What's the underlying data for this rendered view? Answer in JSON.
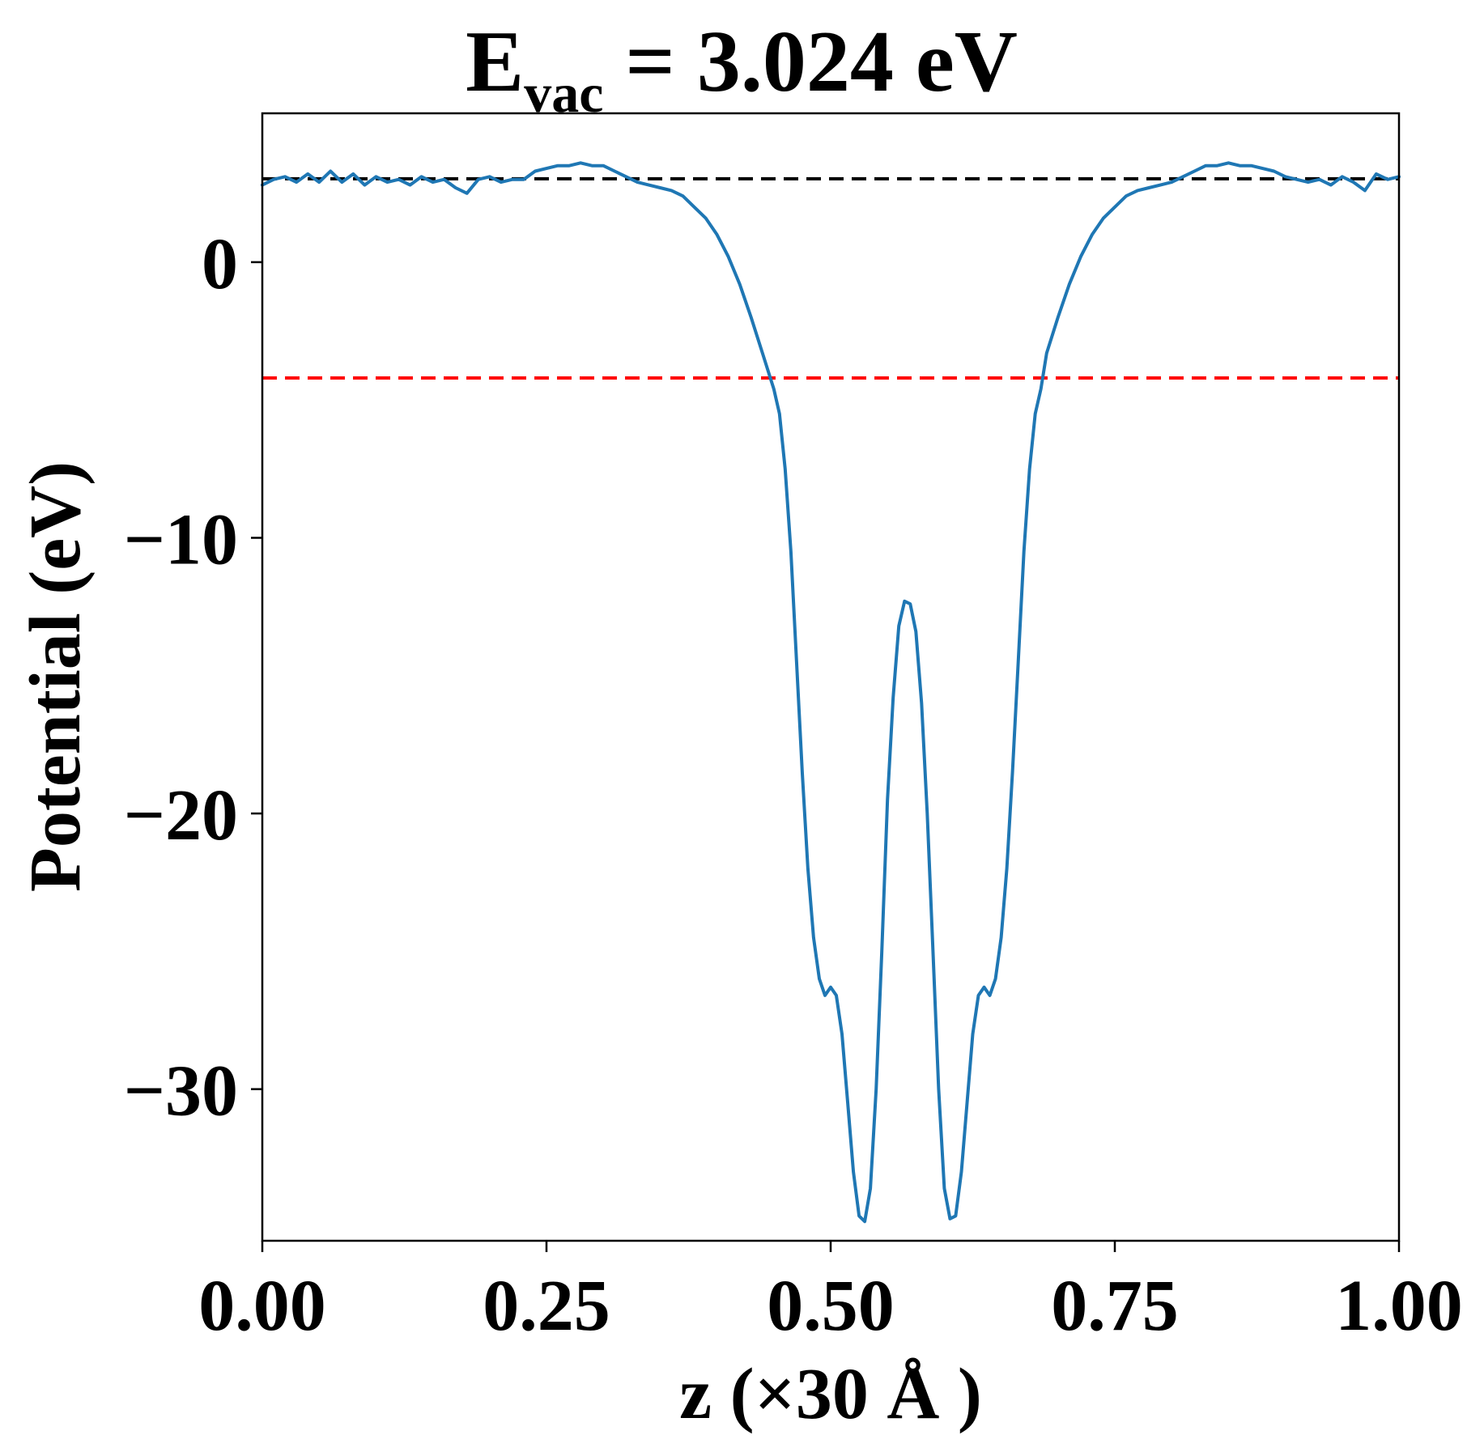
{
  "chart_data": {
    "type": "line",
    "title": {
      "main": "E",
      "subscript": "vac",
      "rest": " = 3.024 eV"
    },
    "xlabel": "z (×30 Å )",
    "ylabel": "Potential (eV)",
    "xlim": [
      0.0,
      1.0
    ],
    "ylim": [
      -35.5,
      5.4
    ],
    "xticks": [
      {
        "value": 0.0,
        "label": "0.00"
      },
      {
        "value": 0.25,
        "label": "0.25"
      },
      {
        "value": 0.5,
        "label": "0.50"
      },
      {
        "value": 0.75,
        "label": "0.75"
      },
      {
        "value": 1.0,
        "label": "1.00"
      }
    ],
    "yticks": [
      {
        "value": 0,
        "label": "0"
      },
      {
        "value": -10,
        "label": "−10"
      },
      {
        "value": -20,
        "label": "−20"
      },
      {
        "value": -30,
        "label": "−30"
      }
    ],
    "grid": false,
    "reference_lines": [
      {
        "y": 3.024,
        "color": "#000000",
        "style": "dashed"
      },
      {
        "y": -4.2,
        "color": "#ff0000",
        "style": "dashed"
      }
    ],
    "series": [
      {
        "color": "#1f77b4",
        "points": [
          [
            0.0,
            2.8
          ],
          [
            0.01,
            3.0
          ],
          [
            0.02,
            3.1
          ],
          [
            0.03,
            2.9
          ],
          [
            0.04,
            3.2
          ],
          [
            0.05,
            2.9
          ],
          [
            0.06,
            3.3
          ],
          [
            0.07,
            2.9
          ],
          [
            0.08,
            3.2
          ],
          [
            0.09,
            2.8
          ],
          [
            0.1,
            3.1
          ],
          [
            0.11,
            2.9
          ],
          [
            0.12,
            3.0
          ],
          [
            0.13,
            2.8
          ],
          [
            0.14,
            3.1
          ],
          [
            0.15,
            2.9
          ],
          [
            0.16,
            3.0
          ],
          [
            0.17,
            2.7
          ],
          [
            0.18,
            2.5
          ],
          [
            0.19,
            3.0
          ],
          [
            0.2,
            3.1
          ],
          [
            0.21,
            2.9
          ],
          [
            0.22,
            3.0
          ],
          [
            0.23,
            3.0
          ],
          [
            0.24,
            3.3
          ],
          [
            0.25,
            3.4
          ],
          [
            0.26,
            3.5
          ],
          [
            0.27,
            3.5
          ],
          [
            0.28,
            3.6
          ],
          [
            0.29,
            3.5
          ],
          [
            0.3,
            3.5
          ],
          [
            0.31,
            3.3
          ],
          [
            0.32,
            3.1
          ],
          [
            0.33,
            2.9
          ],
          [
            0.34,
            2.8
          ],
          [
            0.35,
            2.7
          ],
          [
            0.36,
            2.6
          ],
          [
            0.37,
            2.4
          ],
          [
            0.38,
            2.0
          ],
          [
            0.39,
            1.6
          ],
          [
            0.4,
            1.0
          ],
          [
            0.41,
            0.2
          ],
          [
            0.42,
            -0.8
          ],
          [
            0.43,
            -2.0
          ],
          [
            0.44,
            -3.3
          ],
          [
            0.45,
            -4.6
          ],
          [
            0.455,
            -5.5
          ],
          [
            0.46,
            -7.5
          ],
          [
            0.465,
            -10.5
          ],
          [
            0.47,
            -14.5
          ],
          [
            0.475,
            -18.5
          ],
          [
            0.48,
            -22.0
          ],
          [
            0.485,
            -24.5
          ],
          [
            0.49,
            -26.0
          ],
          [
            0.495,
            -26.6
          ],
          [
            0.5,
            -26.3
          ],
          [
            0.505,
            -26.6
          ],
          [
            0.51,
            -28.0
          ],
          [
            0.515,
            -30.5
          ],
          [
            0.52,
            -33.0
          ],
          [
            0.525,
            -34.6
          ],
          [
            0.53,
            -34.8
          ],
          [
            0.535,
            -33.6
          ],
          [
            0.54,
            -30.0
          ],
          [
            0.545,
            -25.0
          ],
          [
            0.55,
            -19.5
          ],
          [
            0.555,
            -15.8
          ],
          [
            0.56,
            -13.2
          ],
          [
            0.565,
            -12.3
          ],
          [
            0.57,
            -12.4
          ],
          [
            0.575,
            -13.4
          ],
          [
            0.58,
            -16.0
          ],
          [
            0.585,
            -20.0
          ],
          [
            0.59,
            -25.0
          ],
          [
            0.595,
            -30.0
          ],
          [
            0.6,
            -33.6
          ],
          [
            0.605,
            -34.7
          ],
          [
            0.61,
            -34.6
          ],
          [
            0.615,
            -33.0
          ],
          [
            0.62,
            -30.5
          ],
          [
            0.625,
            -28.0
          ],
          [
            0.63,
            -26.6
          ],
          [
            0.635,
            -26.3
          ],
          [
            0.64,
            -26.6
          ],
          [
            0.645,
            -26.0
          ],
          [
            0.65,
            -24.5
          ],
          [
            0.655,
            -22.0
          ],
          [
            0.66,
            -18.5
          ],
          [
            0.665,
            -14.5
          ],
          [
            0.67,
            -10.5
          ],
          [
            0.675,
            -7.5
          ],
          [
            0.68,
            -5.5
          ],
          [
            0.685,
            -4.6
          ],
          [
            0.69,
            -3.3
          ],
          [
            0.7,
            -2.0
          ],
          [
            0.71,
            -0.8
          ],
          [
            0.72,
            0.2
          ],
          [
            0.73,
            1.0
          ],
          [
            0.74,
            1.6
          ],
          [
            0.75,
            2.0
          ],
          [
            0.76,
            2.4
          ],
          [
            0.77,
            2.6
          ],
          [
            0.78,
            2.7
          ],
          [
            0.79,
            2.8
          ],
          [
            0.8,
            2.9
          ],
          [
            0.81,
            3.1
          ],
          [
            0.82,
            3.3
          ],
          [
            0.83,
            3.5
          ],
          [
            0.84,
            3.5
          ],
          [
            0.85,
            3.6
          ],
          [
            0.86,
            3.5
          ],
          [
            0.87,
            3.5
          ],
          [
            0.88,
            3.4
          ],
          [
            0.89,
            3.3
          ],
          [
            0.9,
            3.1
          ],
          [
            0.91,
            3.0
          ],
          [
            0.92,
            2.9
          ],
          [
            0.93,
            3.0
          ],
          [
            0.94,
            2.8
          ],
          [
            0.95,
            3.1
          ],
          [
            0.96,
            2.9
          ],
          [
            0.97,
            2.6
          ],
          [
            0.98,
            3.2
          ],
          [
            0.99,
            3.0
          ],
          [
            1.0,
            3.1
          ]
        ]
      }
    ]
  }
}
